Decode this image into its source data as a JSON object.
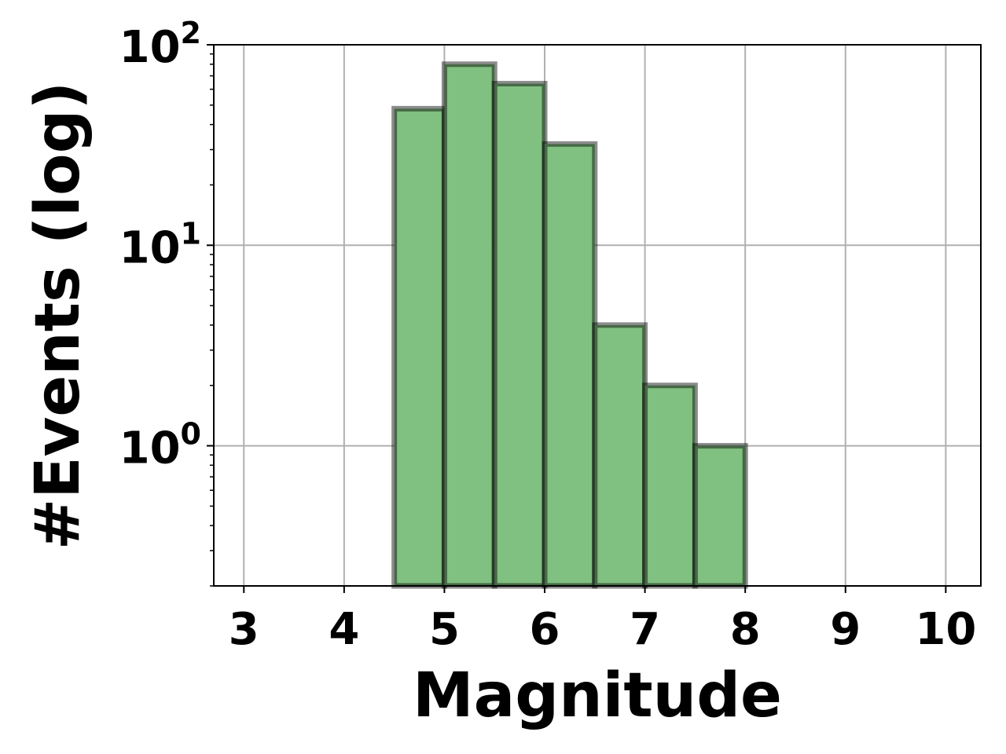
{
  "chart_data": {
    "type": "bar",
    "title": "",
    "xlabel": "Magnitude",
    "ylabel": "#Events (log)",
    "y_scale": "log",
    "xlim": [
      2.7,
      10.35
    ],
    "ylim": [
      0.2,
      100
    ],
    "x_ticks": [
      3,
      4,
      5,
      6,
      7,
      8,
      9,
      10
    ],
    "y_ticks": [
      {
        "base": "10",
        "exp": "0",
        "value": 1
      },
      {
        "base": "10",
        "exp": "1",
        "value": 10
      },
      {
        "base": "10",
        "exp": "2",
        "value": 100
      }
    ],
    "grid": true,
    "bars": [
      {
        "x0": 4.5,
        "x1": 5.0,
        "value": 48
      },
      {
        "x0": 5.0,
        "x1": 5.5,
        "value": 80
      },
      {
        "x0": 5.5,
        "x1": 6.0,
        "value": 64
      },
      {
        "x0": 6.0,
        "x1": 6.5,
        "value": 32
      },
      {
        "x0": 6.5,
        "x1": 7.0,
        "value": 4
      },
      {
        "x0": 7.0,
        "x1": 7.5,
        "value": 2
      },
      {
        "x0": 7.5,
        "x1": 8.0,
        "value": 1
      }
    ],
    "colors": {
      "bar_fill": "#80c080",
      "bar_edge": "#000000",
      "grid": "#b0b0b0"
    }
  }
}
